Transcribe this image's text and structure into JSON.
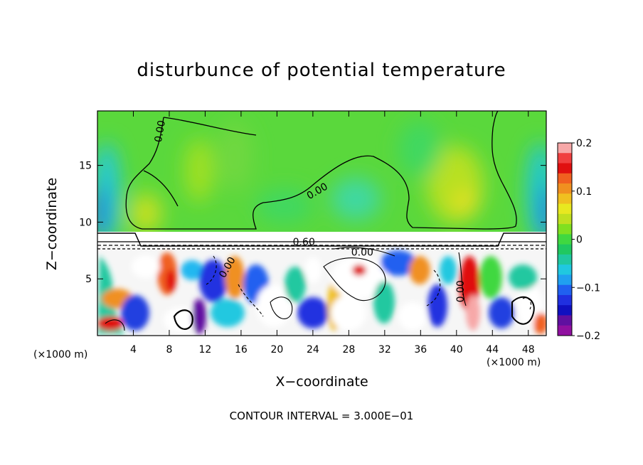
{
  "chart_data": {
    "type": "heatmap",
    "title": "disturbunce of potential temperature",
    "xlabel": "X−coordinate",
    "ylabel": "Z−coordinate",
    "x_unit_label": "(×1000 m)",
    "x_ticks": [
      4,
      8,
      12,
      16,
      20,
      24,
      28,
      32,
      36,
      40,
      44,
      48
    ],
    "y_ticks": [
      5,
      10,
      15
    ],
    "xlim": [
      0,
      50
    ],
    "ylim": [
      0,
      19.8
    ],
    "colorbar": {
      "ticks": [
        {
          "value": 0.2,
          "label": "0.2"
        },
        {
          "value": 0.1,
          "label": "0.1"
        },
        {
          "value": 0.0,
          "label": "0"
        },
        {
          "value": -0.1,
          "label": "−0.1"
        },
        {
          "value": -0.2,
          "label": "−0.2"
        }
      ],
      "range": [
        -0.2,
        0.2
      ],
      "colors": [
        "#f7a8a8",
        "#f04040",
        "#e01010",
        "#f06020",
        "#f09020",
        "#f0c020",
        "#e8e820",
        "#c0e020",
        "#80e020",
        "#40d840",
        "#20c860",
        "#20c8a0",
        "#20c8e0",
        "#20a0f0",
        "#2060f0",
        "#2030e0",
        "#1010c0",
        "#6010a0",
        "#9010a0"
      ]
    },
    "contour_labels": [
      {
        "text": "0.00",
        "x": 7,
        "z": 18.0,
        "angle": -80
      },
      {
        "text": "0.00",
        "x": 24.5,
        "z": 12.7,
        "angle": -30
      },
      {
        "text": "0.60",
        "x": 23,
        "z": 8.2,
        "angle": 0
      },
      {
        "text": "0.00",
        "x": 29.5,
        "z": 7.3,
        "angle": 0
      },
      {
        "text": "0.00",
        "x": 14.5,
        "z": 6.0,
        "angle": -60
      },
      {
        "text": "0.00",
        "x": 40.5,
        "z": 3.9,
        "angle": -90
      }
    ],
    "contour_interval_text": "CONTOUR INTERVAL = 3.000E−01"
  }
}
